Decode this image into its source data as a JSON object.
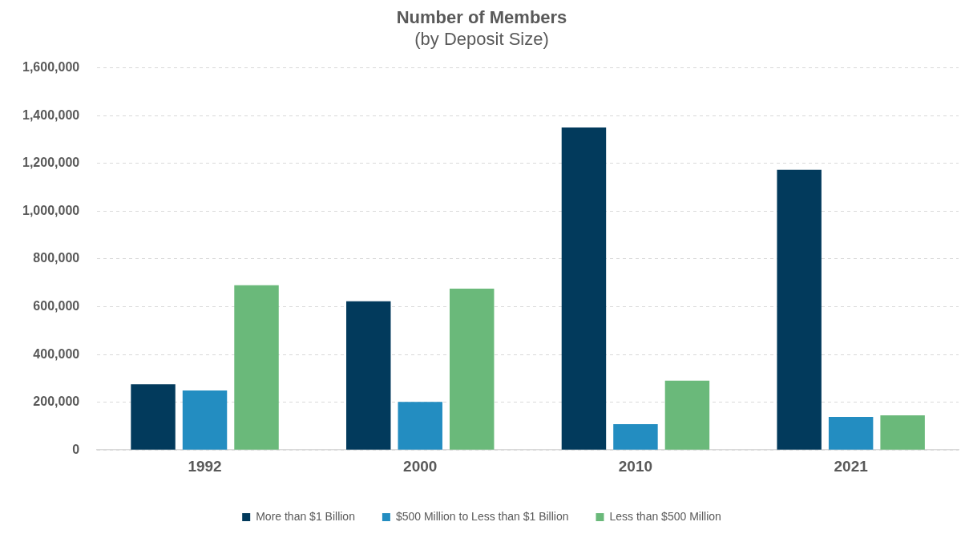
{
  "chart_data": {
    "type": "bar",
    "title": "Number of Members",
    "subtitle": "(by Deposit Size)",
    "categories": [
      "1992",
      "2000",
      "2010",
      "2021"
    ],
    "series": [
      {
        "name": "More than $1 Billion",
        "color": "#023a5c",
        "values": [
          275000,
          623000,
          1351000,
          1174000
        ]
      },
      {
        "name": "$500 Million to Less than $1 Billion",
        "color": "#238dc1",
        "values": [
          249000,
          201000,
          108000,
          138000
        ]
      },
      {
        "name": "Less than $500 Million",
        "color": "#6ab97a",
        "values": [
          690000,
          676000,
          290000,
          145000
        ]
      }
    ],
    "ylim": [
      0,
      1600000
    ],
    "yticks": [
      {
        "value": 0,
        "label": "0"
      },
      {
        "value": 200000,
        "label": "200,000"
      },
      {
        "value": 400000,
        "label": "400,000"
      },
      {
        "value": 600000,
        "label": "600,000"
      },
      {
        "value": 800000,
        "label": "800,000"
      },
      {
        "value": 1000000,
        "label": "1,000,000"
      },
      {
        "value": 1200000,
        "label": "1,200,000"
      },
      {
        "value": 1400000,
        "label": "1,400,000"
      },
      {
        "value": 1600000,
        "label": "1,600,000"
      }
    ],
    "grid": "y",
    "legend": "bottom"
  }
}
